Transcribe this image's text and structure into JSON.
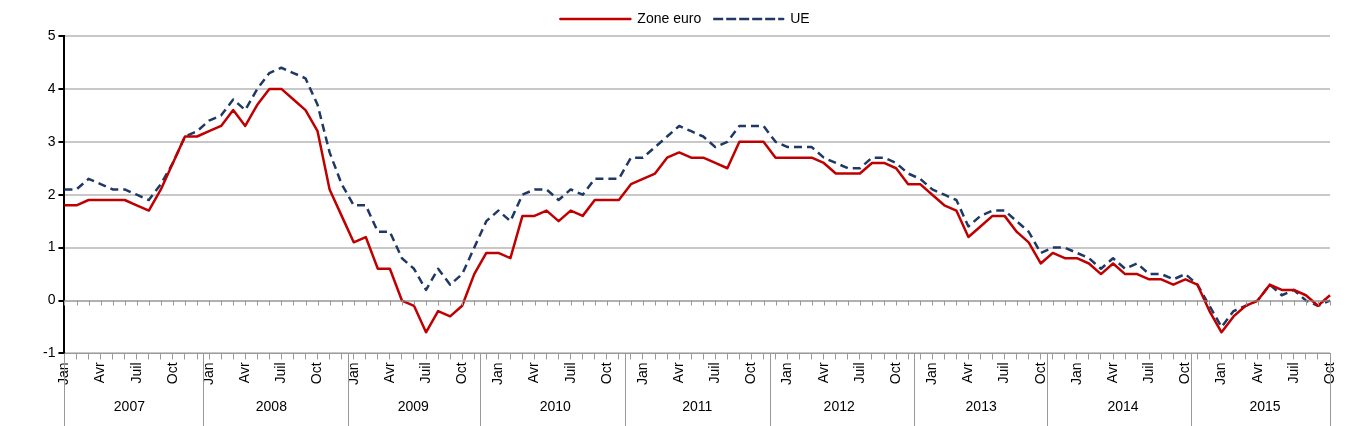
{
  "chart_data": {
    "type": "line",
    "categories": [
      "Jan",
      null,
      null,
      "Avr",
      null,
      null,
      "Juil",
      null,
      null,
      "Oct",
      null,
      null,
      "Jan",
      null,
      null,
      "Avr",
      null,
      null,
      "Juil",
      null,
      null,
      "Oct",
      null,
      null,
      "Jan",
      null,
      null,
      "Avr",
      null,
      null,
      "Juil",
      null,
      null,
      "Oct",
      null,
      null,
      "Jan",
      null,
      null,
      "Avr",
      null,
      null,
      "Juil",
      null,
      null,
      "Oct",
      null,
      null,
      "Jan",
      null,
      null,
      "Avr",
      null,
      null,
      "Juil",
      null,
      null,
      "Oct",
      null,
      null,
      "Jan",
      null,
      null,
      "Avr",
      null,
      null,
      "Juil",
      null,
      null,
      "Oct",
      null,
      null,
      "Jan",
      null,
      null,
      "Avr",
      null,
      null,
      "Juil",
      null,
      null,
      "Oct",
      null,
      null,
      "Jan",
      null,
      null,
      "Avr",
      null,
      null,
      "Juil",
      null,
      null,
      "Oct",
      null,
      null,
      "Jan",
      null,
      null,
      "Avr",
      null,
      null,
      "Juil",
      null,
      null,
      "Oct"
    ],
    "annotations": [
      "2007",
      "2008",
      "2009",
      "2010",
      "2011",
      "2012",
      "2013",
      "2014",
      "2015"
    ],
    "series": [
      {
        "name": "Zone euro",
        "color": "#c00000",
        "line_style": "solid",
        "values": [
          1.8,
          1.8,
          1.9,
          1.9,
          1.9,
          1.9,
          1.8,
          1.7,
          2.1,
          2.6,
          3.1,
          3.1,
          3.2,
          3.3,
          3.6,
          3.3,
          3.7,
          4.0,
          4.0,
          3.8,
          3.6,
          3.2,
          2.1,
          1.6,
          1.1,
          1.2,
          0.6,
          0.6,
          0.0,
          -0.1,
          -0.6,
          -0.2,
          -0.3,
          -0.1,
          0.5,
          0.9,
          0.9,
          0.8,
          1.6,
          1.6,
          1.7,
          1.5,
          1.7,
          1.6,
          1.9,
          1.9,
          1.9,
          2.2,
          2.3,
          2.4,
          2.7,
          2.8,
          2.7,
          2.7,
          2.6,
          2.5,
          3.0,
          3.0,
          3.0,
          2.7,
          2.7,
          2.7,
          2.7,
          2.6,
          2.4,
          2.4,
          2.4,
          2.6,
          2.6,
          2.5,
          2.2,
          2.2,
          2.0,
          1.8,
          1.7,
          1.2,
          1.4,
          1.6,
          1.6,
          1.3,
          1.1,
          0.7,
          0.9,
          0.8,
          0.8,
          0.7,
          0.5,
          0.7,
          0.5,
          0.5,
          0.4,
          0.4,
          0.3,
          0.4,
          0.3,
          -0.2,
          -0.6,
          -0.3,
          -0.1,
          0.0,
          0.3,
          0.2,
          0.2,
          0.1,
          -0.1,
          0.1
        ]
      },
      {
        "name": "UE",
        "color": "#1f3864",
        "line_style": "dashed",
        "values": [
          2.1,
          2.1,
          2.3,
          2.2,
          2.1,
          2.1,
          2.0,
          1.9,
          2.2,
          2.6,
          3.1,
          3.2,
          3.4,
          3.5,
          3.8,
          3.6,
          4.0,
          4.3,
          4.4,
          4.3,
          4.2,
          3.7,
          2.8,
          2.2,
          1.8,
          1.8,
          1.3,
          1.3,
          0.8,
          0.6,
          0.2,
          0.6,
          0.3,
          0.5,
          1.0,
          1.5,
          1.7,
          1.5,
          2.0,
          2.1,
          2.1,
          1.9,
          2.1,
          2.0,
          2.3,
          2.3,
          2.3,
          2.7,
          2.7,
          2.9,
          3.1,
          3.3,
          3.2,
          3.1,
          2.9,
          3.0,
          3.3,
          3.3,
          3.3,
          3.0,
          2.9,
          2.9,
          2.9,
          2.7,
          2.6,
          2.5,
          2.5,
          2.7,
          2.7,
          2.6,
          2.4,
          2.3,
          2.1,
          2.0,
          1.9,
          1.4,
          1.6,
          1.7,
          1.7,
          1.5,
          1.3,
          0.9,
          1.0,
          1.0,
          0.9,
          0.8,
          0.6,
          0.8,
          0.6,
          0.7,
          0.5,
          0.5,
          0.4,
          0.5,
          0.3,
          -0.1,
          -0.5,
          -0.2,
          -0.1,
          0.0,
          0.3,
          0.1,
          0.2,
          0.0,
          -0.1,
          0.0
        ]
      }
    ],
    "ylim": [
      -1,
      5
    ],
    "yticks": [
      -1,
      0,
      1,
      2,
      3,
      4,
      5
    ],
    "grid": "y",
    "legend": "top",
    "marker": "none"
  }
}
